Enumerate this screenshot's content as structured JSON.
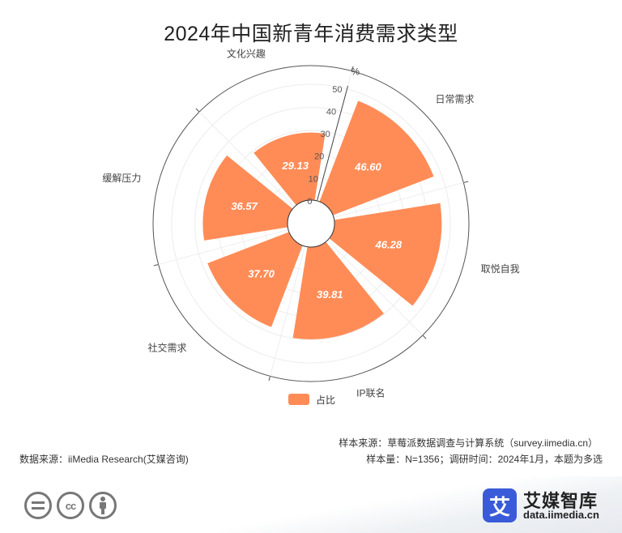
{
  "title": "2024年中国新青年消费需求类型",
  "chart_data": {
    "type": "polar-bar",
    "categories": [
      "日常需求",
      "取悦自我",
      "IP联名",
      "社交需求",
      "缓解压力",
      "文化兴趣"
    ],
    "series": [
      {
        "name": "占比",
        "values": [
          46.6,
          46.28,
          39.81,
          37.7,
          36.57,
          29.13
        ]
      }
    ],
    "radial_axis": {
      "label": "%",
      "range": [
        0,
        50
      ],
      "ticks": [
        0,
        10,
        20,
        30,
        40,
        50
      ]
    },
    "color": "#FF8C57",
    "legend_position": "bottom"
  },
  "legend": {
    "label": "占比"
  },
  "footer": {
    "source_left": "数据来源：iiMedia Research(艾媒咨询)",
    "source_right_line1": "样本来源：草莓派数据调查与计算系统（survey.iimedia.cn）",
    "source_right_line2": "样本量：N=1356；调研时间：2024年1月，本题为多选"
  },
  "logo": {
    "name": "艾媒智库",
    "url": "data.iimedia.cn",
    "mark": "艾"
  },
  "license_icons": [
    "equals-icon",
    "cc-icon",
    "person-icon"
  ]
}
